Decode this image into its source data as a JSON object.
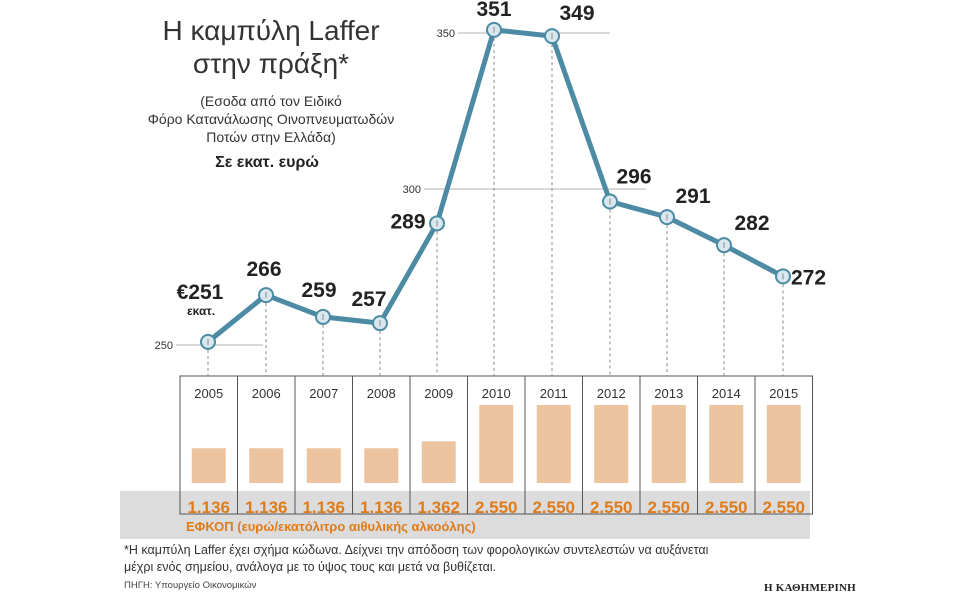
{
  "header": {
    "title_line1": "Η καμπύλη Laffer",
    "title_line2": "στην πράξη*",
    "subtitle_line1": "(Εσοδα από τον Ειδικό",
    "subtitle_line2": "Φόρο Κατανάλωσης Οινοπνευματωδών",
    "subtitle_line3": "Ποτών στην Ελλάδα)",
    "unit": "Σε εκατ. ευρώ"
  },
  "footer": {
    "note_line1": "*Η καμπύλη Laffer έχει σχήμα κώδωνα. Δείχνει την απόδοση των φορολογικών συντελεστών να αυξάνεται",
    "note_line2": "μέχρι ενός σημείου, ανάλογα με το ύψος τους και μετά να βυθίζεται.",
    "source": "ΠΗΓΗ: Υπουργείο Οικονομικών",
    "brand": "Η ΚΑΘΗΜΕΡΙΝΗ"
  },
  "colors": {
    "line": "#4c8ba3",
    "marker_fill": "#d9e8ee",
    "bar": "#ebc39e",
    "rate_text": "#e07b1a",
    "band": "#dcdcdc",
    "grid": "#9a9a9a",
    "text": "#222222"
  },
  "chart_data": [
    {
      "type": "line",
      "title": "",
      "x": [
        "2005",
        "2006",
        "2007",
        "2008",
        "2009",
        "2010",
        "2011",
        "2012",
        "2013",
        "2014",
        "2015"
      ],
      "series": [
        {
          "values": [
            251,
            266,
            259,
            257,
            289,
            351,
            349,
            296,
            291,
            282,
            272
          ]
        }
      ],
      "data_labels": [
        "€251",
        "266",
        "259",
        "257",
        "289",
        "351",
        "349",
        "296",
        "291",
        "282",
        "272"
      ],
      "first_label_suffix": "εκατ.",
      "y_ticks": [
        250,
        300,
        350
      ],
      "ylim": [
        250,
        351
      ],
      "grid": "reference lines at ticks only",
      "marker": "circle"
    },
    {
      "type": "bar",
      "title": "",
      "categories": [
        "2005",
        "2006",
        "2007",
        "2008",
        "2009",
        "2010",
        "2011",
        "2012",
        "2013",
        "2014",
        "2015"
      ],
      "values": [
        1136,
        1136,
        1136,
        1136,
        1362,
        2550,
        2550,
        2550,
        2550,
        2550,
        2550
      ],
      "value_labels": [
        "1.136",
        "1.136",
        "1.136",
        "1.136",
        "1.362",
        "2.550",
        "2.550",
        "2.550",
        "2.550",
        "2.550",
        "2.550"
      ],
      "xlabel": "ΕΦΚΟΠ (ευρώ/εκατόλιτρο αιθυλικής αλκοόλης)"
    }
  ]
}
